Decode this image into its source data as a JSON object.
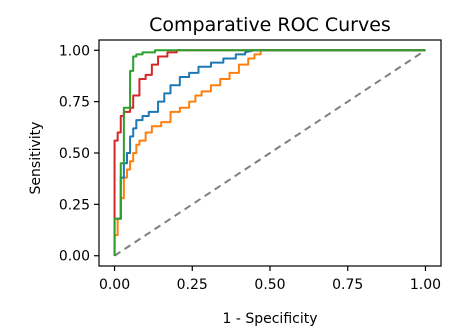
{
  "chart_data": {
    "type": "line",
    "title": "Comparative ROC Curves",
    "xlabel": "1 - Specificity",
    "ylabel": "Sensitivity",
    "xlim": [
      -0.05,
      1.05
    ],
    "ylim": [
      -0.05,
      1.05
    ],
    "xticks": [
      "0.00",
      "0.25",
      "0.50",
      "0.75",
      "1.00"
    ],
    "yticks": [
      "0.00",
      "0.25",
      "0.50",
      "0.75",
      "1.00"
    ],
    "grid": false,
    "legend": "none",
    "reference_line": {
      "x": [
        0,
        1
      ],
      "y": [
        0,
        1
      ],
      "color": "#808080",
      "style": "dashed"
    },
    "series": [
      {
        "color": "#ff7f0e",
        "x": [
          0.0,
          0.0,
          0.01,
          0.01,
          0.02,
          0.02,
          0.03,
          0.03,
          0.04,
          0.04,
          0.05,
          0.05,
          0.06,
          0.06,
          0.07,
          0.07,
          0.08,
          0.08,
          0.1,
          0.1,
          0.12,
          0.12,
          0.15,
          0.15,
          0.18,
          0.18,
          0.21,
          0.21,
          0.24,
          0.24,
          0.26,
          0.26,
          0.28,
          0.28,
          0.31,
          0.31,
          0.34,
          0.34,
          0.37,
          0.37,
          0.4,
          0.4,
          0.43,
          0.43,
          0.45,
          0.45,
          0.47,
          0.47,
          0.5,
          1.0
        ],
        "y": [
          0.0,
          0.1,
          0.1,
          0.18,
          0.18,
          0.28,
          0.28,
          0.38,
          0.38,
          0.42,
          0.42,
          0.46,
          0.46,
          0.5,
          0.5,
          0.54,
          0.54,
          0.56,
          0.56,
          0.6,
          0.6,
          0.63,
          0.63,
          0.65,
          0.65,
          0.7,
          0.7,
          0.72,
          0.72,
          0.75,
          0.75,
          0.78,
          0.78,
          0.8,
          0.8,
          0.83,
          0.83,
          0.86,
          0.86,
          0.89,
          0.89,
          0.93,
          0.93,
          0.96,
          0.96,
          0.98,
          0.98,
          1.0,
          1.0,
          1.0
        ]
      },
      {
        "color": "#1f77b4",
        "x": [
          0.0,
          0.0,
          0.02,
          0.02,
          0.03,
          0.03,
          0.04,
          0.04,
          0.05,
          0.05,
          0.06,
          0.06,
          0.07,
          0.07,
          0.09,
          0.09,
          0.11,
          0.11,
          0.14,
          0.14,
          0.16,
          0.16,
          0.18,
          0.18,
          0.21,
          0.21,
          0.24,
          0.24,
          0.27,
          0.27,
          0.31,
          0.31,
          0.35,
          0.35,
          0.39,
          0.39,
          0.42,
          0.42,
          0.45,
          1.0
        ],
        "y": [
          0.0,
          0.18,
          0.18,
          0.38,
          0.38,
          0.45,
          0.45,
          0.5,
          0.5,
          0.58,
          0.58,
          0.62,
          0.62,
          0.66,
          0.66,
          0.68,
          0.68,
          0.7,
          0.7,
          0.75,
          0.75,
          0.79,
          0.79,
          0.83,
          0.83,
          0.87,
          0.87,
          0.89,
          0.89,
          0.92,
          0.92,
          0.94,
          0.94,
          0.96,
          0.96,
          0.98,
          0.98,
          0.99,
          1.0,
          1.0
        ]
      },
      {
        "color": "#d62728",
        "x": [
          0.0,
          0.0,
          0.01,
          0.01,
          0.02,
          0.02,
          0.03,
          0.03,
          0.05,
          0.05,
          0.06,
          0.06,
          0.08,
          0.08,
          0.1,
          0.1,
          0.12,
          0.12,
          0.14,
          0.14,
          0.17,
          0.17,
          0.2,
          0.2,
          1.0
        ],
        "y": [
          0.0,
          0.56,
          0.56,
          0.6,
          0.6,
          0.68,
          0.68,
          0.7,
          0.7,
          0.72,
          0.72,
          0.78,
          0.78,
          0.86,
          0.86,
          0.88,
          0.88,
          0.93,
          0.93,
          0.97,
          0.97,
          0.99,
          0.99,
          1.0,
          1.0
        ]
      },
      {
        "color": "#2ca02c",
        "x": [
          0.0,
          0.0,
          0.02,
          0.02,
          0.03,
          0.03,
          0.05,
          0.05,
          0.06,
          0.06,
          0.07,
          0.07,
          0.09,
          0.09,
          0.13,
          0.13,
          0.2,
          1.0
        ],
        "y": [
          0.0,
          0.18,
          0.18,
          0.45,
          0.45,
          0.72,
          0.72,
          0.9,
          0.9,
          0.97,
          0.97,
          0.98,
          0.98,
          0.99,
          0.99,
          1.0,
          1.0,
          1.0
        ]
      }
    ]
  }
}
